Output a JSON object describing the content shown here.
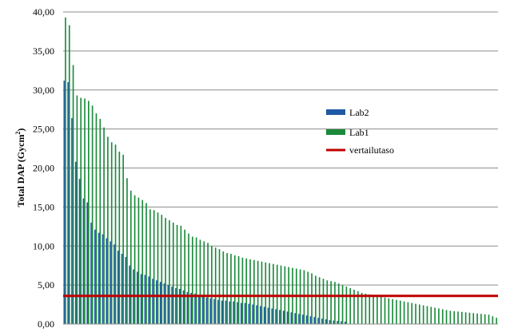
{
  "chart_data": {
    "type": "bar",
    "ylabel_main": "Total DAP (Gycm",
    "ylabel_sup": "2",
    "ylabel_close": ")",
    "ylim": [
      0,
      40
    ],
    "yticks": [
      "0,00",
      "5,00",
      "10,00",
      "15,00",
      "20,00",
      "25,00",
      "30,00",
      "35,00",
      "40,00"
    ],
    "ytick_values": [
      0,
      5,
      10,
      15,
      20,
      25,
      30,
      35,
      40
    ],
    "grid": true,
    "legend_position": "right",
    "series": [
      {
        "name": "Lab2",
        "color": "#1f5aa6",
        "values": [
          31.2,
          31.0,
          26.4,
          20.8,
          18.6,
          16.1,
          15.6,
          13.0,
          12.1,
          11.7,
          11.5,
          11.0,
          10.6,
          10.2,
          9.4,
          9.0,
          8.6,
          7.5,
          7.0,
          6.7,
          6.4,
          6.3,
          6.1,
          5.8,
          5.6,
          5.4,
          5.2,
          5.0,
          4.8,
          4.6,
          4.5,
          4.3,
          4.1,
          4.0,
          3.9,
          3.7,
          3.5,
          3.4,
          3.3,
          3.2,
          3.1,
          3.0,
          3.0,
          2.9,
          2.9,
          2.8,
          2.7,
          2.7,
          2.6,
          2.5,
          2.4,
          2.3,
          2.2,
          2.1,
          2.0,
          1.9,
          1.8,
          1.7,
          1.6,
          1.5,
          1.4,
          1.3,
          1.2,
          1.1,
          1.0,
          0.9,
          0.8,
          0.7,
          0.6,
          0.5,
          0.45,
          0.4,
          0.35,
          0.3
        ]
      },
      {
        "name": "Lab1",
        "color": "#1a8a3a",
        "values": [
          39.3,
          38.3,
          33.2,
          29.3,
          29.0,
          28.9,
          28.6,
          28.0,
          27.0,
          26.3,
          25.2,
          24.0,
          23.3,
          23.0,
          22.1,
          21.7,
          18.7,
          17.1,
          16.5,
          16.2,
          15.9,
          15.5,
          14.7,
          14.6,
          14.3,
          14.0,
          13.6,
          13.3,
          13.0,
          12.7,
          12.6,
          12.1,
          11.6,
          11.2,
          11.1,
          10.8,
          10.6,
          10.4,
          10.0,
          9.8,
          9.6,
          9.3,
          9.1,
          9.0,
          8.8,
          8.7,
          8.5,
          8.4,
          8.3,
          8.2,
          8.1,
          8.0,
          7.9,
          7.8,
          7.7,
          7.6,
          7.5,
          7.4,
          7.3,
          7.2,
          7.1,
          7.0,
          6.9,
          6.7,
          6.5,
          6.2,
          6.0,
          5.8,
          5.6,
          5.5,
          5.4,
          5.2,
          5.0,
          4.8,
          4.6,
          4.4,
          4.2,
          4.0,
          3.9,
          3.8,
          3.7,
          3.6,
          3.5,
          3.4,
          3.3,
          3.2,
          3.1,
          3.0,
          2.9,
          2.8,
          2.7,
          2.6,
          2.5,
          2.4,
          2.3,
          2.2,
          2.1,
          2.0,
          1.9,
          1.8,
          1.7,
          1.65,
          1.6,
          1.55,
          1.5,
          1.45,
          1.4,
          1.35,
          1.3,
          1.25,
          1.2,
          1.0,
          0.8
        ]
      }
    ],
    "reference_line": {
      "name": "vertailutaso",
      "value": 3.6,
      "color": "#c00000"
    }
  }
}
